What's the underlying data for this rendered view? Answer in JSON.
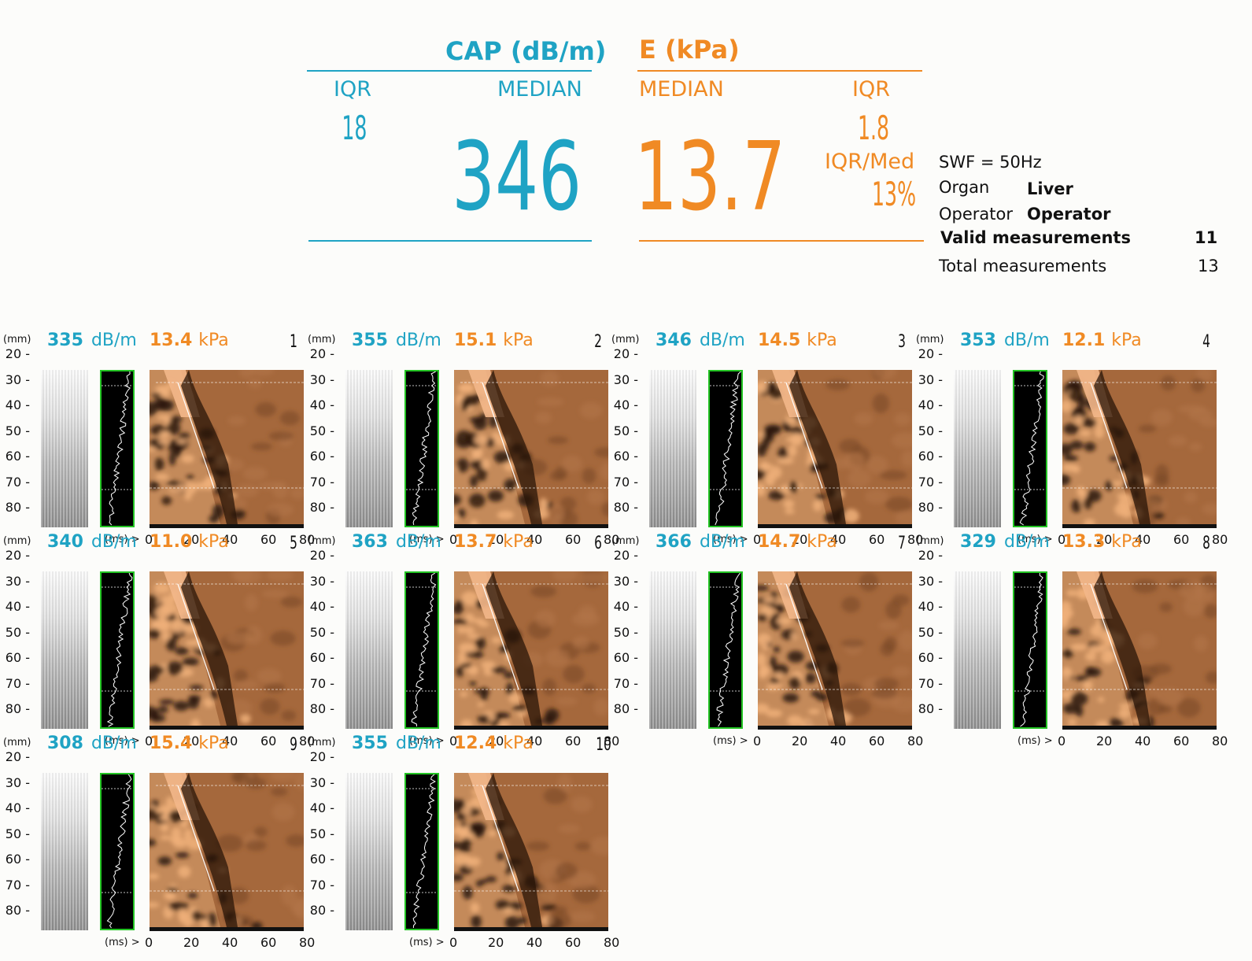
{
  "summary": {
    "cap_title": "CAP (dB/m)",
    "e_title": "E (kPa)",
    "cap_iqr_label": "IQR",
    "cap_median_label": "MEDIAN",
    "cap_iqr": "18",
    "cap_median": "346",
    "e_median_label": "MEDIAN",
    "e_iqr_label": "IQR",
    "e_median": "13.7",
    "e_iqr": "1.8",
    "iqr_med_label": "IQR/Med",
    "iqr_med": "13%"
  },
  "info": {
    "swf": "SWF = 50Hz",
    "organ_label": "Organ",
    "organ_value": "Liver",
    "operator_label": "Operator",
    "operator_value": "Operator",
    "valid_label": "Valid measurements",
    "valid_value": "11",
    "total_label": "Total measurements",
    "total_value": "13"
  },
  "panel_common": {
    "mm": "(mm)",
    "cap_unit": "dB/m",
    "e_unit": "kPa",
    "ms": "(ms) >",
    "depth_ticks": [
      "20 -",
      "30 -",
      "40 -",
      "50 -",
      "60 -",
      "70 -",
      "80 -"
    ],
    "time_ticks": [
      "0",
      "20",
      "40",
      "60",
      "80"
    ]
  },
  "panels": [
    {
      "index": "1",
      "cap": "335",
      "e": "13.4"
    },
    {
      "index": "2",
      "cap": "355",
      "e": "15.1"
    },
    {
      "index": "3",
      "cap": "346",
      "e": "14.5"
    },
    {
      "index": "4",
      "cap": "353",
      "e": "12.1"
    },
    {
      "index": "5",
      "cap": "340",
      "e": "11.0"
    },
    {
      "index": "6",
      "cap": "363",
      "e": "13.7"
    },
    {
      "index": "7",
      "cap": "366",
      "e": "14.7"
    },
    {
      "index": "8",
      "cap": "329",
      "e": "13.3"
    },
    {
      "index": "9",
      "cap": "308",
      "e": "15.4"
    },
    {
      "index": "10",
      "cap": "355",
      "e": "12.4"
    }
  ],
  "colors": {
    "cap": "#1fa3c4",
    "elasticity": "#f08a24",
    "mmode_border": "#23c423"
  }
}
